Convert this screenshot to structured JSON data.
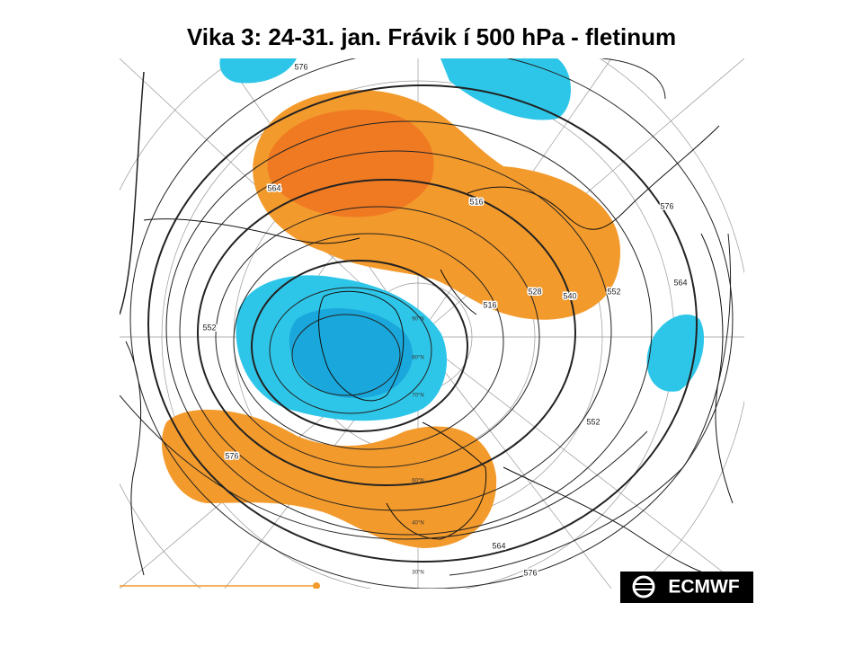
{
  "title": "Vika 3: 24-31. jan.  Frávik í 500 hPa - fletinum",
  "map": {
    "contour_labels": [
      "576",
      "564",
      "552",
      "576",
      "564",
      "576",
      "552",
      "564",
      "576",
      "552",
      "540",
      "528",
      "516",
      "516"
    ],
    "latitude_labels": [
      "90°N",
      "80°N",
      "70°N",
      "60°N",
      "40°N",
      "30°N"
    ]
  },
  "logo": "ECMWF"
}
